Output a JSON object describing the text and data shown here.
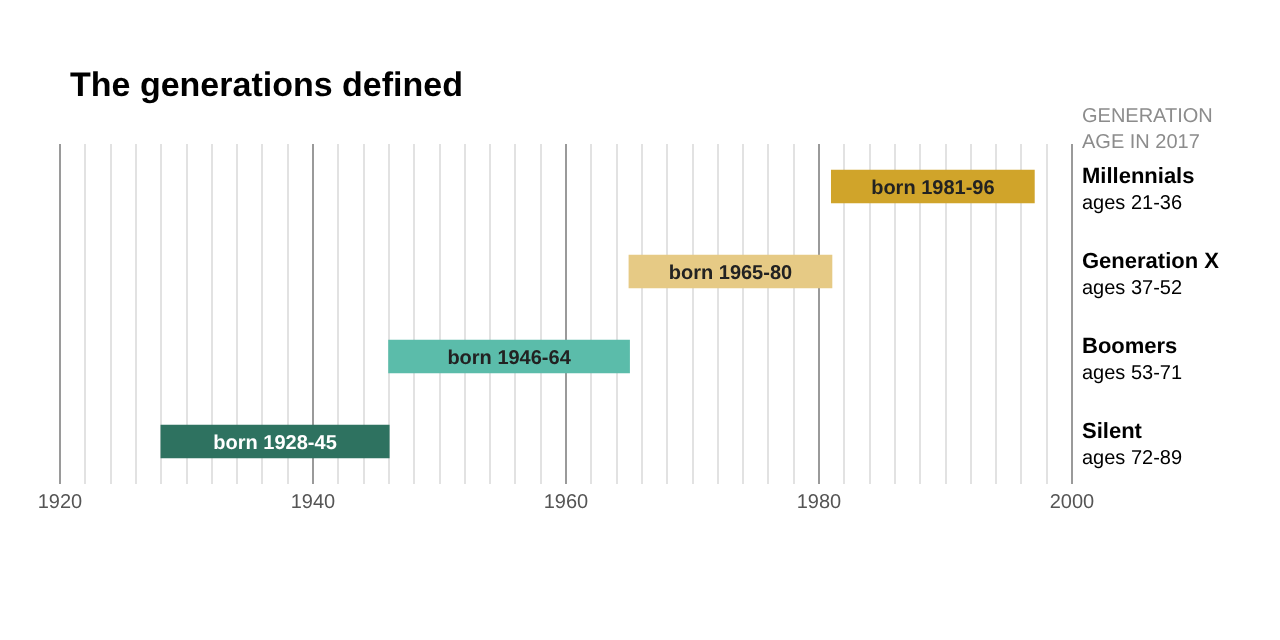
{
  "chart_data": {
    "type": "bar",
    "orientation": "horizontal",
    "title": "The generations defined",
    "ylabel": "GENERATION\nAGE IN 2017",
    "categories": [
      "Millennials\nages 21-36",
      "Generation X\nages 37-52",
      "Boomers\nages 53-71",
      "Silent\nages 72-89"
    ],
    "base": [
      1981,
      1965,
      1946,
      1928
    ],
    "values": [
      16,
      16,
      19,
      18
    ],
    "colors": [
      "#d0a42a",
      "#e6ca85",
      "#5bbcaa",
      "#2e7260"
    ],
    "value_labels": [
      "born 1981-96",
      "born 1965-80",
      "born 1946-64",
      "born 1928-45"
    ],
    "xlim": [
      1920,
      2000
    ],
    "xticks": [
      1920,
      {
        "value": 1922,
        "label": null
      },
      {
        "value": 1924,
        "label": null
      },
      {
        "value": 1926,
        "label": null
      },
      {
        "value": 1928,
        "label": null
      },
      {
        "value": 1930,
        "label": null
      },
      {
        "value": 1932,
        "label": null
      },
      {
        "value": 1934,
        "label": null
      },
      {
        "value": 1936,
        "label": null
      },
      {
        "value": 1938,
        "label": null
      },
      1940,
      {
        "value": 1942,
        "label": null
      },
      {
        "value": 1944,
        "label": null
      },
      {
        "value": 1946,
        "label": null
      },
      {
        "value": 1948,
        "label": null
      },
      {
        "value": 1950,
        "label": null
      },
      {
        "value": 1952,
        "label": null
      },
      {
        "value": 1954,
        "label": null
      },
      {
        "value": 1956,
        "label": null
      },
      {
        "value": 1958,
        "label": null
      },
      1960,
      {
        "value": 1962,
        "label": null
      },
      {
        "value": 1964,
        "label": null
      },
      {
        "value": 1966,
        "label": null
      },
      {
        "value": 1968,
        "label": null
      },
      {
        "value": 1970,
        "label": null
      },
      {
        "value": 1972,
        "label": null
      },
      {
        "value": 1974,
        "label": null
      },
      {
        "value": 1976,
        "label": null
      },
      {
        "value": 1978,
        "label": null
      },
      1980,
      {
        "value": 1982,
        "label": null
      },
      {
        "value": 1984,
        "label": null
      },
      {
        "value": 1986,
        "label": null
      },
      {
        "value": 1988,
        "label": null
      },
      {
        "value": 1990,
        "label": null
      },
      {
        "value": 1992,
        "label": null
      },
      {
        "value": 1994,
        "label": null
      },
      {
        "value": 1996,
        "label": null
      },
      {
        "value": 1998,
        "label": null
      },
      2000
    ],
    "grid": "x"
  }
}
